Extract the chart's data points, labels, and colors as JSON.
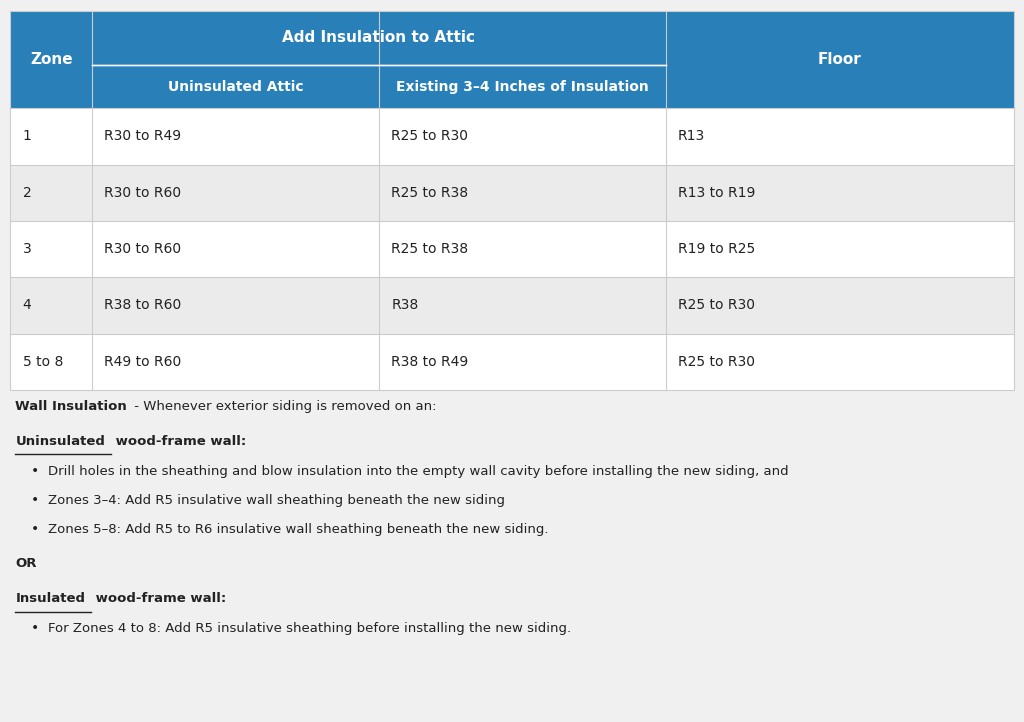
{
  "header_bg": "#2980b9",
  "header_text_color": "#ffffff",
  "row_colors": [
    "#ffffff",
    "#ebebeb",
    "#ffffff",
    "#ebebeb",
    "#ffffff"
  ],
  "border_color": "#cccccc",
  "text_color": "#222222",
  "header1": "Zone",
  "header2": "Add Insulation to Attic",
  "header2a": "Uninsulated Attic",
  "header2b": "Existing 3–4 Inches of Insulation",
  "header3": "Floor",
  "table_data": [
    [
      "1",
      "R30 to R49",
      "R25 to R30",
      "R13"
    ],
    [
      "2",
      "R30 to R60",
      "R25 to R38",
      "R13 to R19"
    ],
    [
      "3",
      "R30 to R60",
      "R25 to R38",
      "R19 to R25"
    ],
    [
      "4",
      "R38 to R60",
      "R38",
      "R25 to R30"
    ],
    [
      "5 to 8",
      "R49 to R60",
      "R38 to R49",
      "R25 to R30"
    ]
  ],
  "note_intro": "Wall Insulation",
  "note_intro_suffix": " - Whenever exterior siding is removed on an:",
  "uninsulated_heading_underline": "Uninsulated",
  "uninsulated_heading_rest": " wood-frame wall:",
  "bullets1": [
    "Drill holes in the sheathing and blow insulation into the empty wall cavity before installing the new siding, and",
    "Zones 3–4: Add R5 insulative wall sheathing beneath the new siding",
    "Zones 5–8: Add R5 to R6 insulative wall sheathing beneath the new siding."
  ],
  "or_text": "OR",
  "insulated_heading_underline": "Insulated",
  "insulated_heading_rest": " wood-frame wall:",
  "bullets2": [
    "For Zones 4 to 8: Add R5 insulative sheathing before installing the new siding."
  ],
  "bg_color": "#f0f0f0"
}
